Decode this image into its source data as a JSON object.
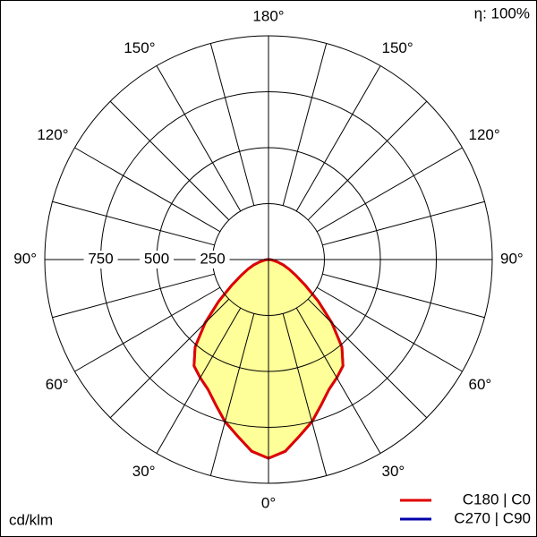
{
  "chart_data": {
    "type": "polar",
    "efficiency": "η: 100%",
    "unit": "cd/klm",
    "rlim": [
      0,
      1000
    ],
    "rticks": [
      250,
      500,
      750
    ],
    "angle_grid_step": 15,
    "aticks": [
      {
        "value": 0,
        "label": "0°"
      },
      {
        "value": 30,
        "label": "30°"
      },
      {
        "value": 60,
        "label": "60°"
      },
      {
        "value": 90,
        "label": "90°"
      },
      {
        "value": 120,
        "label": "120°"
      },
      {
        "value": 150,
        "label": "150°"
      },
      {
        "value": 180,
        "label": "180°"
      }
    ],
    "fill": "#ffff99",
    "angles": [
      0,
      5,
      10,
      15,
      20,
      25,
      30,
      35,
      40,
      45,
      50,
      55,
      60,
      65,
      70,
      75,
      80,
      85,
      90
    ],
    "series": [
      {
        "name": "C270 | C90",
        "color": "#0000aa",
        "values": [
          888,
          860,
          800,
          750,
          690,
          640,
          610,
          580,
          510,
          400,
          290,
          200,
          140,
          100,
          70,
          40,
          20,
          10,
          0
        ]
      },
      {
        "name": "C180 | C0",
        "color": "#e00000",
        "values": [
          888,
          860,
          800,
          750,
          690,
          640,
          610,
          580,
          510,
          400,
          290,
          200,
          140,
          100,
          70,
          40,
          20,
          10,
          0
        ]
      }
    ]
  }
}
